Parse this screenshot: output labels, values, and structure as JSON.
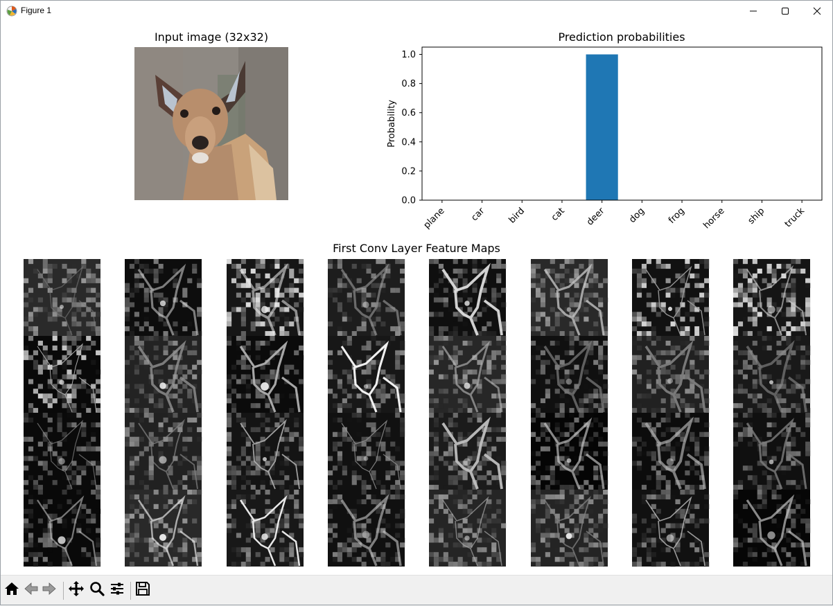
{
  "window": {
    "title": "Figure 1",
    "icons": {
      "app": "matplotlib-app-icon",
      "minimize": "minimize-icon",
      "maximize": "maximize-icon",
      "close": "close-icon"
    }
  },
  "input_panel": {
    "title": "Input image (32x32)",
    "image": "deer-photo"
  },
  "chart_data": {
    "type": "bar",
    "title": "Prediction probabilities",
    "xlabel": "",
    "ylabel": "Probability",
    "categories": [
      "plane",
      "car",
      "bird",
      "cat",
      "deer",
      "dog",
      "frog",
      "horse",
      "ship",
      "truck"
    ],
    "values": [
      0,
      0,
      0,
      0,
      1.0,
      0,
      0,
      0,
      0,
      0
    ],
    "ylim": [
      0,
      1.05
    ],
    "yticks": [
      "0.0",
      "0.2",
      "0.4",
      "0.6",
      "0.8",
      "1.0"
    ],
    "bar_color": "#1f77b4",
    "grid": false
  },
  "feature_maps": {
    "title": "First Conv Layer Feature Maps",
    "rows": 4,
    "cols": 8,
    "colormap": "gray"
  },
  "toolbar": {
    "buttons": [
      {
        "icon": "home-icon",
        "name": "home-button"
      },
      {
        "icon": "back-arrow-icon",
        "name": "back-button"
      },
      {
        "icon": "forward-arrow-icon",
        "name": "forward-button"
      },
      {
        "icon": "pan-move-icon",
        "name": "pan-button"
      },
      {
        "icon": "zoom-magnifier-icon",
        "name": "zoom-button"
      },
      {
        "icon": "configure-subplots-icon",
        "name": "configure-subplots-button"
      },
      {
        "icon": "save-disk-icon",
        "name": "save-button"
      }
    ]
  }
}
